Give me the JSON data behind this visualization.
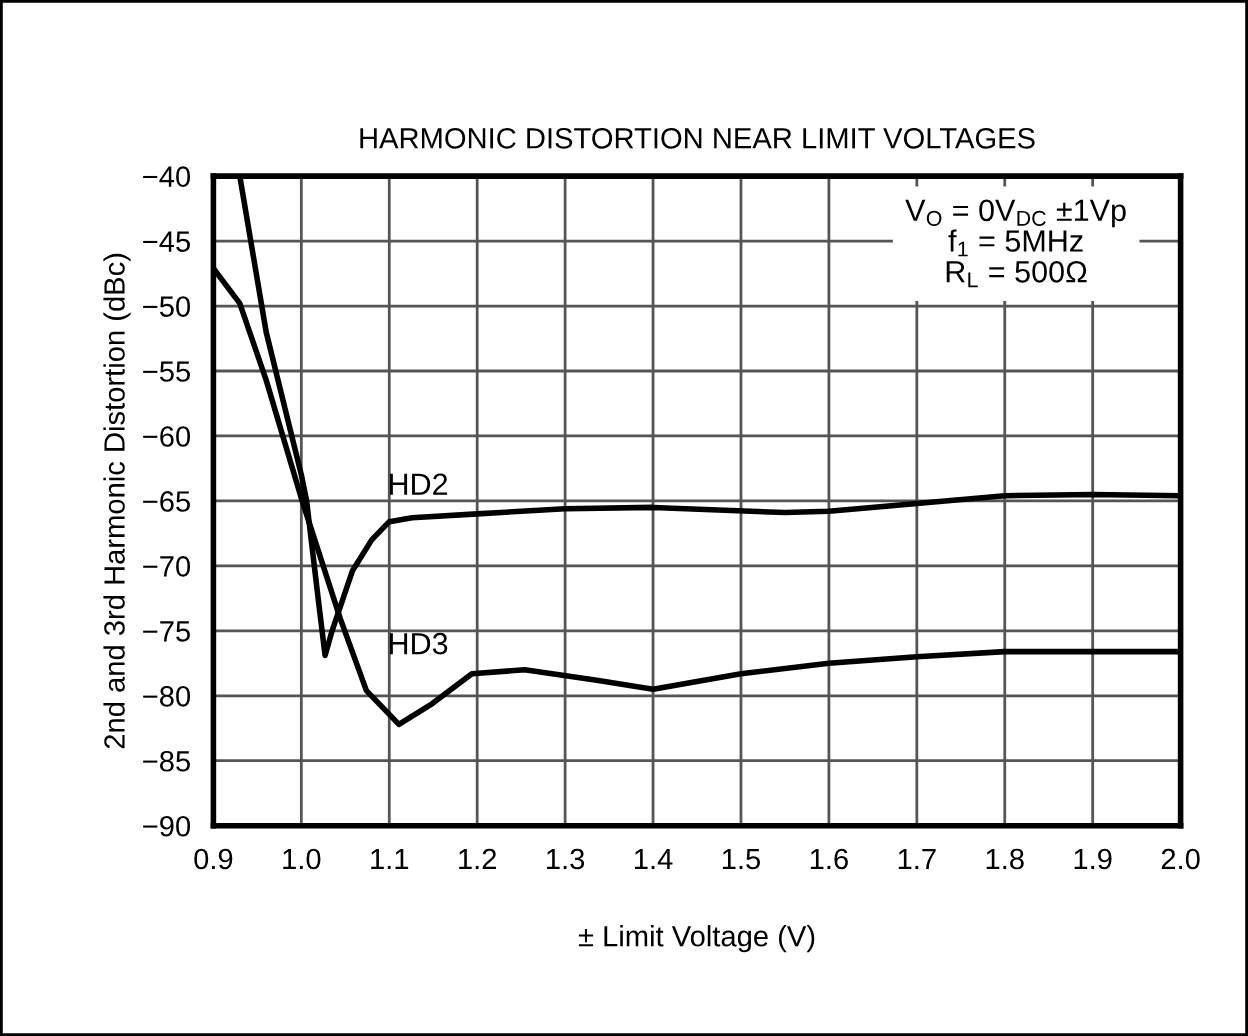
{
  "chart_data": {
    "type": "line",
    "title": "HARMONIC DISTORTION NEAR LIMIT VOLTAGES",
    "xlabel": "± Limit Voltage (V)",
    "ylabel": "2nd and 3rd Harmonic Distortion (dBc)",
    "series": [
      {
        "name": "HD2",
        "color": "#000000",
        "x": [
          0.93,
          0.96,
          1.0,
          1.006,
          1.02,
          1.027,
          1.035,
          1.058,
          1.08,
          1.1,
          1.126,
          1.2,
          1.3,
          1.4,
          1.55,
          1.6,
          1.7,
          1.8,
          1.9,
          2.0
        ],
        "values": [
          -40,
          -52,
          -63,
          -65,
          -73,
          -76.9,
          -75,
          -70.4,
          -68,
          -66.6,
          -66.3,
          -66,
          -65.6,
          -65.5,
          -65.9,
          -65.8,
          -65.2,
          -64.6,
          -64.5,
          -64.6
        ]
      },
      {
        "name": "HD3",
        "color": "#000000",
        "x": [
          0.9,
          0.93,
          0.96,
          1.0,
          1.044,
          1.074,
          1.111,
          1.149,
          1.194,
          1.254,
          1.336,
          1.4,
          1.5,
          1.6,
          1.7,
          1.8,
          1.9,
          2.0
        ],
        "values": [
          -47.1,
          -49.8,
          -55.7,
          -64.8,
          -74,
          -79.6,
          -82.2,
          -80.6,
          -78.3,
          -78,
          -78.8,
          -79.5,
          -78.3,
          -77.5,
          -77,
          -76.6,
          -76.6,
          -76.6
        ]
      }
    ],
    "annotations": [
      "V$_{O}$ = 0V$_{DC}$ ±1Vp",
      "f$_{1}$ = 5MHz",
      "R$_{L}$ = 500Ω"
    ],
    "xlim": [
      0.9,
      2.0
    ],
    "xticks": [
      {
        "value": 0.9,
        "label": "0.9"
      },
      {
        "value": 1.0,
        "label": "1.0"
      },
      {
        "value": 1.1,
        "label": "1.1"
      },
      {
        "value": 1.2,
        "label": "1.2"
      },
      {
        "value": 1.3,
        "label": "1.3"
      },
      {
        "value": 1.4,
        "label": "1.4"
      },
      {
        "value": 1.5,
        "label": "1.5"
      },
      {
        "value": 1.6,
        "label": "1.6"
      },
      {
        "value": 1.7,
        "label": "1.7"
      },
      {
        "value": 1.8,
        "label": "1.8"
      },
      {
        "value": 1.9,
        "label": "1.9"
      },
      {
        "value": 2.0,
        "label": "2.0"
      }
    ],
    "ylim": [
      -90,
      -40
    ],
    "yticks": [
      {
        "value": -90,
        "label": "−90"
      },
      {
        "value": -85,
        "label": "−85"
      },
      {
        "value": -80,
        "label": "−80"
      },
      {
        "value": -75,
        "label": "−75"
      },
      {
        "value": -70,
        "label": "−70"
      },
      {
        "value": -65,
        "label": "−65"
      },
      {
        "value": -60,
        "label": "−60"
      },
      {
        "value": -55,
        "label": "−55"
      },
      {
        "value": -50,
        "label": "−50"
      },
      {
        "value": -45,
        "label": "−45"
      },
      {
        "value": -40,
        "label": "−40"
      }
    ],
    "grid": true,
    "marker": "none",
    "line_style": "solid"
  }
}
